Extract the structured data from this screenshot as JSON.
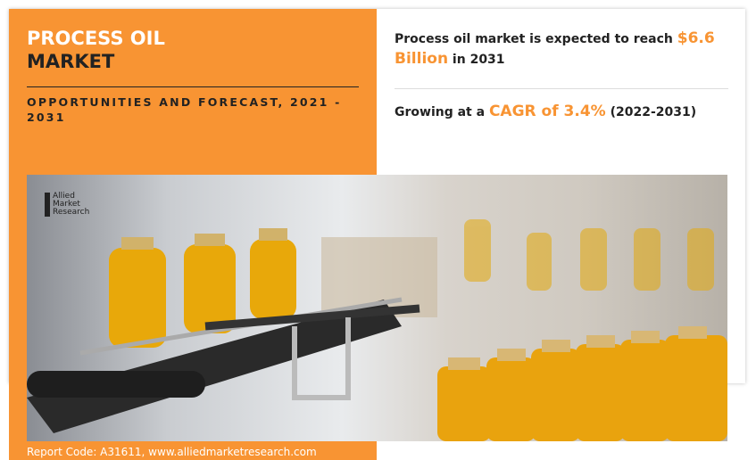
{
  "header": {
    "title_line1": "PROCESS OIL",
    "title_line2": "MARKET",
    "subtitle": "OPPORTUNITIES AND FORECAST, 2021 - 2031"
  },
  "stats": {
    "reach_prefix": "Process oil market is expected to reach ",
    "reach_value": "$6.6 Billion",
    "reach_suffix": " in 2031",
    "growth_prefix": "Growing at a ",
    "growth_value": "CAGR of 3.4%",
    "growth_suffix": " (2022-2031)"
  },
  "image": {
    "logo_line1": "Allied",
    "logo_line2": "Market",
    "logo_line3": "Research"
  },
  "footer": {
    "report_code": "Report Code: A31611, www.alliedmarketresearch.com"
  },
  "colors": {
    "accent": "#f89433",
    "text": "#222222"
  }
}
